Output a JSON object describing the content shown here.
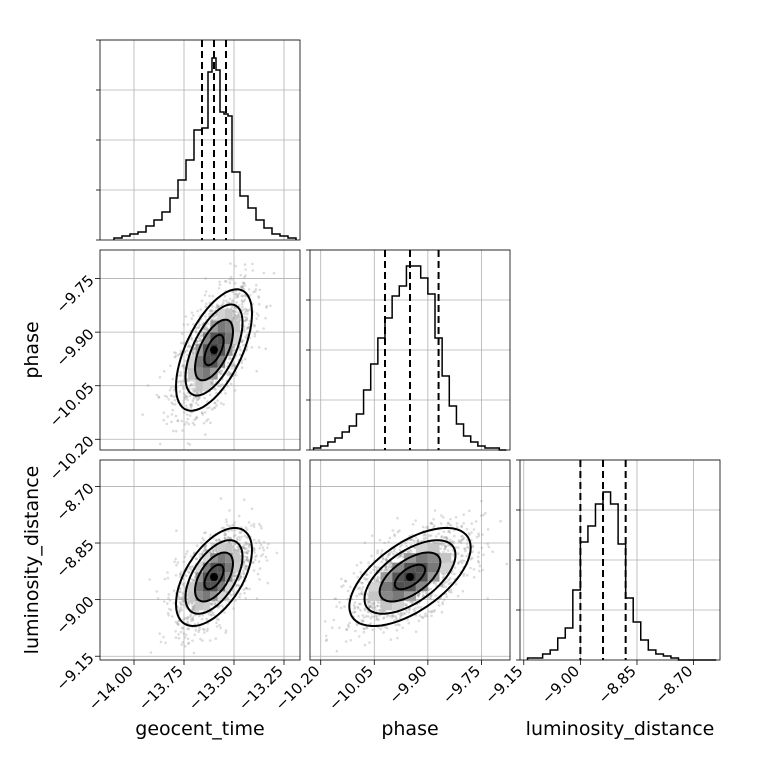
{
  "chart_data": {
    "type": "corner",
    "parameters": [
      "geocent_time",
      "phase",
      "luminosity_distance"
    ],
    "ranges": {
      "geocent_time": [
        -14.17,
        -13.17
      ],
      "phase": [
        -10.23,
        -9.67
      ],
      "luminosity_distance": [
        -9.16,
        -8.63
      ]
    },
    "ticks": {
      "geocent_time": [
        -14.0,
        -13.75,
        -13.5,
        -13.25
      ],
      "phase": [
        -10.2,
        -10.05,
        -9.9,
        -9.75
      ],
      "luminosity_distance": [
        -9.15,
        -9.0,
        -8.85,
        -8.7
      ]
    },
    "tick_labels": {
      "geocent_time": [
        "−14.00",
        "−13.75",
        "−13.50",
        "−13.25"
      ],
      "phase": [
        "−10.20",
        "−10.05",
        "−9.90",
        "−9.75"
      ],
      "luminosity_distance": [
        "−9.15",
        "−9.00",
        "−8.85",
        "−8.70"
      ]
    },
    "labels": {
      "geocent_time": "geocent_time",
      "phase": "phase",
      "luminosity_distance": "luminosity_distance"
    },
    "quantiles": {
      "geocent_time": [
        -13.66,
        -13.6,
        -13.54
      ],
      "phase": [
        -10.02,
        -9.95,
        -9.87
      ],
      "luminosity_distance": [
        -9.0,
        -8.94,
        -8.88
      ]
    },
    "histograms": {
      "geocent_time": {
        "bin_edges": [
          -14.1,
          -14.06,
          -14.02,
          -13.98,
          -13.94,
          -13.9,
          -13.86,
          -13.82,
          -13.78,
          -13.74,
          -13.7,
          -13.66,
          -13.63,
          -13.61,
          -13.59,
          -13.57,
          -13.55,
          -13.53,
          -13.51,
          -13.47,
          -13.43,
          -13.39,
          -13.35,
          -13.31,
          -13.27,
          -13.23,
          -13.19
        ],
        "counts": [
          0.01,
          0.02,
          0.03,
          0.04,
          0.07,
          0.1,
          0.14,
          0.21,
          0.3,
          0.4,
          0.55,
          0.56,
          0.84,
          0.91,
          0.85,
          0.64,
          0.63,
          0.62,
          0.34,
          0.22,
          0.16,
          0.1,
          0.06,
          0.03,
          0.02,
          0.01
        ]
      },
      "phase": {
        "bin_edges": [
          -10.22,
          -10.2,
          -10.18,
          -10.16,
          -10.14,
          -10.12,
          -10.1,
          -10.08,
          -10.06,
          -10.04,
          -10.02,
          -10.0,
          -9.98,
          -9.96,
          -9.94,
          -9.92,
          -9.9,
          -9.88,
          -9.86,
          -9.84,
          -9.82,
          -9.8,
          -9.78,
          -9.76,
          -9.74,
          -9.72,
          -9.7,
          -9.68
        ],
        "counts": [
          0.01,
          0.02,
          0.04,
          0.06,
          0.09,
          0.12,
          0.18,
          0.3,
          0.43,
          0.56,
          0.66,
          0.77,
          0.82,
          0.92,
          0.92,
          0.86,
          0.78,
          0.56,
          0.37,
          0.22,
          0.13,
          0.07,
          0.04,
          0.02,
          0.01,
          0.01,
          0.0
        ]
      },
      "luminosity_distance": {
        "bin_edges": [
          -9.14,
          -9.12,
          -9.1,
          -9.08,
          -9.06,
          -9.04,
          -9.02,
          -9.0,
          -8.98,
          -8.96,
          -8.94,
          -8.92,
          -8.9,
          -8.88,
          -8.86,
          -8.84,
          -8.82,
          -8.8,
          -8.78,
          -8.76,
          -8.74,
          -8.72,
          -8.7,
          -8.68,
          -8.66,
          -8.64
        ],
        "counts": [
          0.01,
          0.01,
          0.03,
          0.05,
          0.11,
          0.16,
          0.35,
          0.59,
          0.67,
          0.78,
          0.84,
          0.78,
          0.58,
          0.31,
          0.19,
          0.1,
          0.05,
          0.03,
          0.02,
          0.01,
          0.0,
          0.0,
          0.0,
          0.0,
          0.0
        ]
      }
    },
    "correlations": {
      "phase|geocent_time": 0.6,
      "luminosity_distance|geocent_time": 0.55,
      "luminosity_distance|phase": 0.6
    },
    "standard_deviations": {
      "geocent_time": 0.095,
      "phase": 0.085,
      "luminosity_distance": 0.065
    },
    "grid": true,
    "contour_levels_sigma": [
      0.5,
      1.0,
      1.5,
      2.0
    ]
  }
}
